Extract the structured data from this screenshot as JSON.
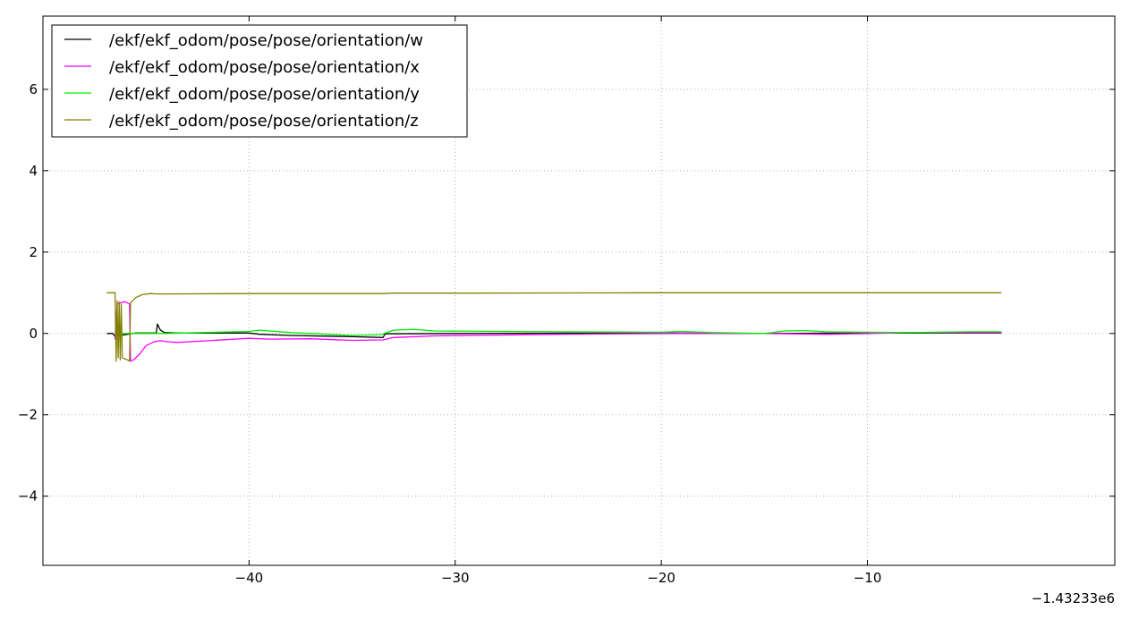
{
  "chart_data": {
    "type": "line",
    "title": "",
    "xlabel": "",
    "ylabel": "",
    "x_offset_label": "−1.43233e6",
    "xlim": [
      -50,
      2
    ],
    "ylim": [
      -5.7,
      7.8
    ],
    "x_ticks": [
      -40,
      -30,
      -20,
      -10
    ],
    "x_tick_labels": [
      "−40",
      "−30",
      "−20",
      "−10"
    ],
    "y_ticks": [
      -4,
      -2,
      0,
      2,
      4,
      6
    ],
    "y_tick_labels": [
      "−4",
      "−2",
      "0",
      "2",
      "4",
      "6"
    ],
    "grid": true,
    "legend_position": "top-left",
    "series": [
      {
        "name": "/ekf/ekf_odom/pose/pose/orientation/w",
        "color": "#000000",
        "points": [
          [
            -46.9,
            0.0
          ],
          [
            -46.6,
            0.0
          ],
          [
            -46.5,
            -0.08
          ],
          [
            -46.4,
            0.02
          ],
          [
            -46.3,
            -0.05
          ],
          [
            -46.0,
            -0.03
          ],
          [
            -45.5,
            0.01
          ],
          [
            -44.5,
            0.01
          ],
          [
            -44.45,
            0.23
          ],
          [
            -44.3,
            0.08
          ],
          [
            -44.1,
            0.02
          ],
          [
            -43.5,
            0.01
          ],
          [
            -40.0,
            0.01
          ],
          [
            -39.5,
            -0.02
          ],
          [
            -38.0,
            -0.05
          ],
          [
            -35.0,
            -0.08
          ],
          [
            -33.5,
            -0.1
          ],
          [
            -33.4,
            -0.01
          ],
          [
            -30.0,
            0.0
          ],
          [
            -20.0,
            0.01
          ],
          [
            -15.0,
            0.0
          ],
          [
            -10.0,
            0.01
          ],
          [
            -3.5,
            0.01
          ]
        ]
      },
      {
        "name": "/ekf/ekf_odom/pose/pose/orientation/x",
        "color": "#ff00ff",
        "points": [
          [
            -46.5,
            -0.15
          ],
          [
            -46.4,
            0.72
          ],
          [
            -46.2,
            0.76
          ],
          [
            -46.0,
            0.78
          ],
          [
            -45.8,
            0.72
          ],
          [
            -45.75,
            -0.68
          ],
          [
            -45.6,
            -0.65
          ],
          [
            -45.3,
            -0.5
          ],
          [
            -45.0,
            -0.3
          ],
          [
            -44.6,
            -0.2
          ],
          [
            -44.3,
            -0.18
          ],
          [
            -44.0,
            -0.2
          ],
          [
            -43.5,
            -0.22
          ],
          [
            -42.0,
            -0.18
          ],
          [
            -40.0,
            -0.12
          ],
          [
            -39.0,
            -0.14
          ],
          [
            -37.0,
            -0.13
          ],
          [
            -35.0,
            -0.17
          ],
          [
            -33.5,
            -0.16
          ],
          [
            -33.0,
            -0.1
          ],
          [
            -31.0,
            -0.06
          ],
          [
            -28.0,
            -0.04
          ],
          [
            -25.0,
            -0.02
          ],
          [
            -20.0,
            0.0
          ],
          [
            -15.0,
            0.0
          ],
          [
            -12.0,
            -0.02
          ],
          [
            -10.0,
            0.0
          ],
          [
            -8.0,
            0.02
          ],
          [
            -5.0,
            0.02
          ],
          [
            -3.5,
            0.02
          ]
        ]
      },
      {
        "name": "/ekf/ekf_odom/pose/pose/orientation/y",
        "color": "#00ee00",
        "points": [
          [
            -46.5,
            0.0
          ],
          [
            -46.0,
            0.0
          ],
          [
            -44.0,
            0.0
          ],
          [
            -40.0,
            0.05
          ],
          [
            -39.5,
            0.08
          ],
          [
            -38.0,
            0.02
          ],
          [
            -35.0,
            -0.05
          ],
          [
            -33.6,
            -0.03
          ],
          [
            -33.0,
            0.08
          ],
          [
            -32.0,
            0.1
          ],
          [
            -31.0,
            0.06
          ],
          [
            -28.0,
            0.05
          ],
          [
            -25.0,
            0.04
          ],
          [
            -20.0,
            0.03
          ],
          [
            -19.0,
            0.05
          ],
          [
            -17.5,
            0.02
          ],
          [
            -15.0,
            0.0
          ],
          [
            -14.0,
            0.06
          ],
          [
            -13.0,
            0.07
          ],
          [
            -12.0,
            0.04
          ],
          [
            -10.0,
            0.03
          ],
          [
            -8.0,
            0.02
          ],
          [
            -5.0,
            0.04
          ],
          [
            -3.5,
            0.04
          ]
        ]
      },
      {
        "name": "/ekf/ekf_odom/pose/pose/orientation/z",
        "color": "#808000",
        "points": [
          [
            -46.9,
            1.0
          ],
          [
            -46.5,
            1.0
          ],
          [
            -46.45,
            -0.68
          ],
          [
            -46.4,
            0.8
          ],
          [
            -46.35,
            -0.6
          ],
          [
            -46.3,
            0.78
          ],
          [
            -46.25,
            -0.65
          ],
          [
            -46.2,
            0.72
          ],
          [
            -46.15,
            -0.6
          ],
          [
            -45.9,
            -0.65
          ],
          [
            -45.8,
            -0.68
          ],
          [
            -45.75,
            0.75
          ],
          [
            -45.5,
            0.88
          ],
          [
            -45.2,
            0.95
          ],
          [
            -44.8,
            0.98
          ],
          [
            -44.4,
            0.97
          ],
          [
            -40.0,
            0.98
          ],
          [
            -35.0,
            0.98
          ],
          [
            -33.5,
            0.98
          ],
          [
            -33.0,
            0.99
          ],
          [
            -30.0,
            0.99
          ],
          [
            -20.0,
            1.0
          ],
          [
            -15.0,
            1.0
          ],
          [
            -10.0,
            1.0
          ],
          [
            -3.5,
            1.0
          ]
        ]
      }
    ]
  }
}
